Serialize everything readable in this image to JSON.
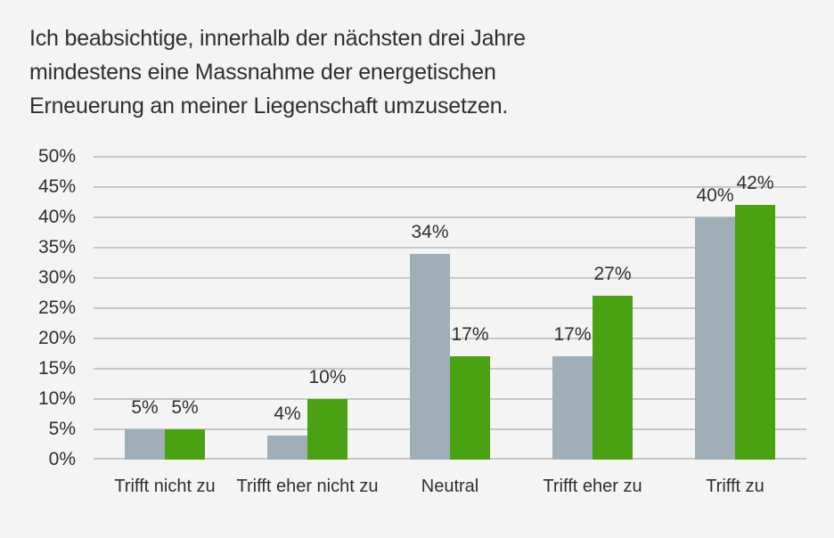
{
  "title": {
    "lines": [
      "Ich beabsichtige, innerhalb der nächsten drei Jahre",
      "mindestens eine Massnahme der energetischen",
      "Erneuerung an meiner Liegenschaft umzusetzen."
    ]
  },
  "chart_data": {
    "type": "bar",
    "title": "Ich beabsichtige, innerhalb der nächsten drei Jahre mindestens eine Massnahme der energetischen Erneuerung an meiner Liegenschaft umzusetzen.",
    "categories": [
      "Trifft nicht zu",
      "Trifft eher nicht zu",
      "Neutral",
      "Trifft eher zu",
      "Trifft zu"
    ],
    "series": [
      {
        "name": "gray",
        "color": "#a0aeb8",
        "values": [
          5,
          4,
          34,
          17,
          40
        ]
      },
      {
        "name": "green",
        "color": "#4aa213",
        "values": [
          5,
          10,
          17,
          27,
          42
        ]
      }
    ],
    "value_label_suffix": "%",
    "y_tick_labels": [
      "0%",
      "5%",
      "10%",
      "15%",
      "20%",
      "25%",
      "30%",
      "35%",
      "40%",
      "45%",
      "50%"
    ],
    "ylim": [
      0,
      50
    ],
    "y_step": 5,
    "grid": true,
    "legend_position": "none",
    "xlabel": "",
    "ylabel": ""
  },
  "colors": {
    "background": "#f4f4f4",
    "gridline": "#c7c7c7",
    "text": "#2f2f2f",
    "bar_gray": "#a0aeb8",
    "bar_green": "#4aa213"
  }
}
